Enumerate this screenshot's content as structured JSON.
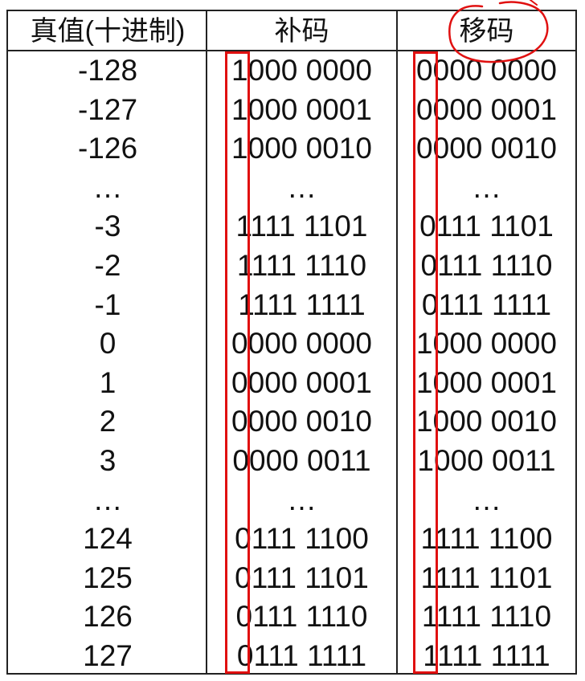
{
  "headers": {
    "col1": "真值(十进制)",
    "col2": "补码",
    "col3": "移码"
  },
  "rows": [
    {
      "value": "-128",
      "complement": "1000 0000",
      "excess": "0000 0000"
    },
    {
      "value": "-127",
      "complement": "1000 0001",
      "excess": "0000 0001"
    },
    {
      "value": "-126",
      "complement": "1000 0010",
      "excess": "0000 0010"
    },
    {
      "value": "…",
      "complement": "…",
      "excess": "…"
    },
    {
      "value": "-3",
      "complement": "1111 1101",
      "excess": "0111 1101"
    },
    {
      "value": "-2",
      "complement": "1111 1110",
      "excess": "0111 1110"
    },
    {
      "value": "-1",
      "complement": "1111 1111",
      "excess": "0111 1111"
    },
    {
      "value": "0",
      "complement": "0000 0000",
      "excess": "1000 0000"
    },
    {
      "value": "1",
      "complement": "0000 0001",
      "excess": "1000 0001"
    },
    {
      "value": "2",
      "complement": "0000 0010",
      "excess": "1000 0010"
    },
    {
      "value": "3",
      "complement": "0000 0011",
      "excess": "1000 0011"
    },
    {
      "value": "…",
      "complement": "…",
      "excess": "…"
    },
    {
      "value": "124",
      "complement": "0111 1100",
      "excess": "1111 1100"
    },
    {
      "value": "125",
      "complement": "0111 1101",
      "excess": "1111 1101"
    },
    {
      "value": "126",
      "complement": "0111 1110",
      "excess": "1111 1110"
    },
    {
      "value": "127",
      "complement": "0111 1111",
      "excess": "1111 1111"
    }
  ],
  "annotation_color": "#e01010"
}
